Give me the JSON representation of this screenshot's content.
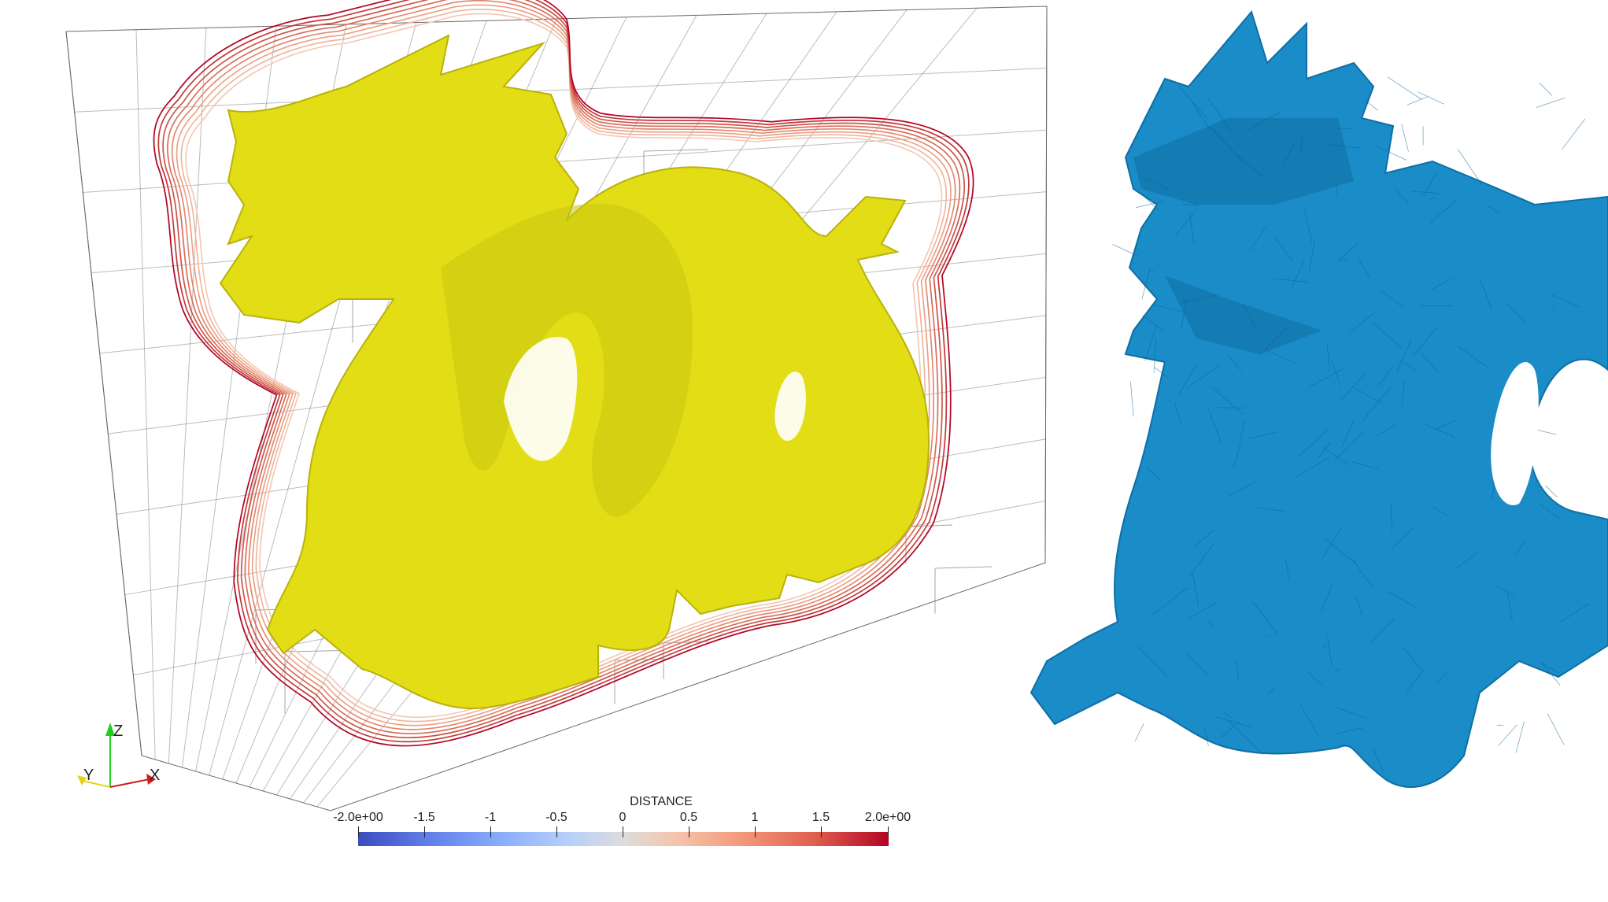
{
  "colorbar": {
    "title": "DISTANCE",
    "ticks": [
      "-2.0e+00",
      "-1.5",
      "-1",
      "-0.5",
      "0",
      "0.5",
      "1",
      "1.5",
      "2.0e+00"
    ],
    "colors": [
      "#3b4cc0",
      "#dddcdc",
      "#b40426"
    ]
  },
  "axes": {
    "z_label": "Z",
    "y_label": "Y",
    "x_label": "X",
    "colors": {
      "z": "#22cc22",
      "y": "#e8d21a",
      "x": "#cc1f1f"
    }
  },
  "objects": {
    "left_mesh_color": "#e6e01a",
    "right_mesh_color": "#1a8cc8",
    "grid_color": "#555555"
  }
}
